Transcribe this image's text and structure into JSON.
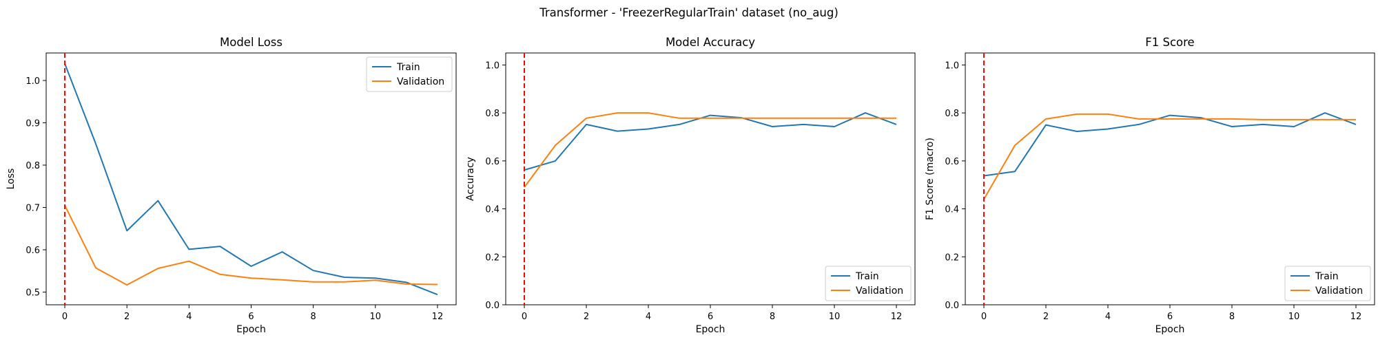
{
  "suptitle": "Transformer - 'FreezerRegularTrain' dataset (no_aug)",
  "colors": {
    "train": "#1f77b4",
    "validation": "#ff7f0e",
    "marker": "#ff0000"
  },
  "chart_data": [
    {
      "type": "line",
      "title": "Model Loss",
      "xlabel": "Epoch",
      "ylabel": "Loss",
      "xlim": [
        -0.6,
        12.6
      ],
      "ylim": [
        0.47,
        1.065
      ],
      "xticks": [
        0,
        2,
        4,
        6,
        8,
        10,
        12
      ],
      "yticks": [
        0.5,
        0.6,
        0.7,
        0.8,
        0.9,
        1.0
      ],
      "ytick_labels": [
        "0.5",
        "0.6",
        "0.7",
        "0.8",
        "0.9",
        "1.0"
      ],
      "vline_x": 0,
      "legend": "upper-right",
      "x": [
        0,
        1,
        2,
        3,
        4,
        5,
        6,
        7,
        8,
        9,
        10,
        11,
        12
      ],
      "series": [
        {
          "name": "Train",
          "values": [
            1.04,
            0.85,
            0.645,
            0.716,
            0.601,
            0.608,
            0.561,
            0.595,
            0.551,
            0.535,
            0.533,
            0.523,
            0.494
          ]
        },
        {
          "name": "Validation",
          "values": [
            0.705,
            0.557,
            0.517,
            0.556,
            0.573,
            0.542,
            0.533,
            0.529,
            0.524,
            0.524,
            0.528,
            0.519,
            0.518
          ]
        }
      ]
    },
    {
      "type": "line",
      "title": "Model Accuracy",
      "xlabel": "Epoch",
      "ylabel": "Accuracy",
      "xlim": [
        -0.6,
        12.6
      ],
      "ylim": [
        0.0,
        1.05
      ],
      "xticks": [
        0,
        2,
        4,
        6,
        8,
        10,
        12
      ],
      "yticks": [
        0.0,
        0.2,
        0.4,
        0.6,
        0.8,
        1.0
      ],
      "ytick_labels": [
        "0.0",
        "0.2",
        "0.4",
        "0.6",
        "0.8",
        "1.0"
      ],
      "vline_x": 0,
      "legend": "lower-right",
      "x": [
        0,
        1,
        2,
        3,
        4,
        5,
        6,
        7,
        8,
        9,
        10,
        11,
        12
      ],
      "series": [
        {
          "name": "Train",
          "values": [
            0.562,
            0.6,
            0.752,
            0.724,
            0.733,
            0.752,
            0.79,
            0.78,
            0.743,
            0.752,
            0.743,
            0.8,
            0.752
          ]
        },
        {
          "name": "Validation",
          "values": [
            0.49,
            0.665,
            0.778,
            0.8,
            0.8,
            0.778,
            0.778,
            0.778,
            0.778,
            0.778,
            0.778,
            0.778,
            0.778
          ]
        }
      ]
    },
    {
      "type": "line",
      "title": "F1 Score",
      "xlabel": "Epoch",
      "ylabel": "F1 Score (macro)",
      "xlim": [
        -0.6,
        12.6
      ],
      "ylim": [
        0.0,
        1.05
      ],
      "xticks": [
        0,
        2,
        4,
        6,
        8,
        10,
        12
      ],
      "yticks": [
        0.0,
        0.2,
        0.4,
        0.6,
        0.8,
        1.0
      ],
      "ytick_labels": [
        "0.0",
        "0.2",
        "0.4",
        "0.6",
        "0.8",
        "1.0"
      ],
      "vline_x": 0,
      "legend": "lower-right",
      "x": [
        0,
        1,
        2,
        3,
        4,
        5,
        6,
        7,
        8,
        9,
        10,
        11,
        12
      ],
      "series": [
        {
          "name": "Train",
          "values": [
            0.538,
            0.556,
            0.75,
            0.723,
            0.733,
            0.752,
            0.79,
            0.78,
            0.743,
            0.752,
            0.743,
            0.8,
            0.752
          ]
        },
        {
          "name": "Validation",
          "values": [
            0.44,
            0.665,
            0.775,
            0.795,
            0.795,
            0.775,
            0.775,
            0.775,
            0.775,
            0.772,
            0.772,
            0.772,
            0.772
          ]
        }
      ]
    }
  ]
}
